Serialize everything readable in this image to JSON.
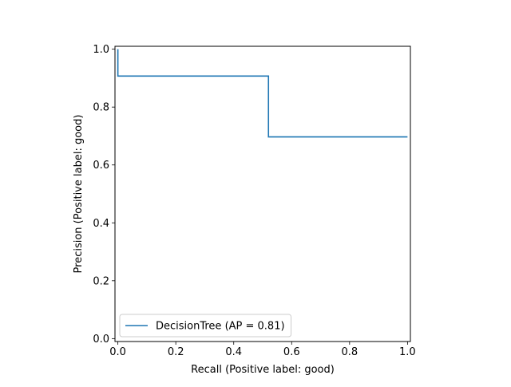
{
  "chart_data": {
    "type": "line",
    "title": "",
    "xlabel": "Recall (Positive label: good)",
    "ylabel": "Precision (Positive label: good)",
    "xlim": [
      -0.01,
      1.01
    ],
    "ylim": [
      -0.01,
      1.01
    ],
    "xticks": [
      0.0,
      0.2,
      0.4,
      0.6,
      0.8,
      1.0
    ],
    "xtick_labels": [
      "0.0",
      "0.2",
      "0.4",
      "0.6",
      "0.8",
      "1.0"
    ],
    "yticks": [
      0.0,
      0.2,
      0.4,
      0.6,
      0.8,
      1.0
    ],
    "ytick_labels": [
      "0.0",
      "0.2",
      "0.4",
      "0.6",
      "0.8",
      "1.0"
    ],
    "grid": false,
    "legend": {
      "placement": "lower-left"
    },
    "series": [
      {
        "name": "DecisionTree (AP = 0.81)",
        "color": "#1f77b4",
        "drawstyle": "steps-post",
        "x": [
          0.0,
          0.0,
          0.0,
          0.52,
          0.52,
          1.0
        ],
        "y": [
          1.0,
          1.0,
          0.907,
          0.907,
          0.697,
          0.697
        ]
      }
    ]
  }
}
